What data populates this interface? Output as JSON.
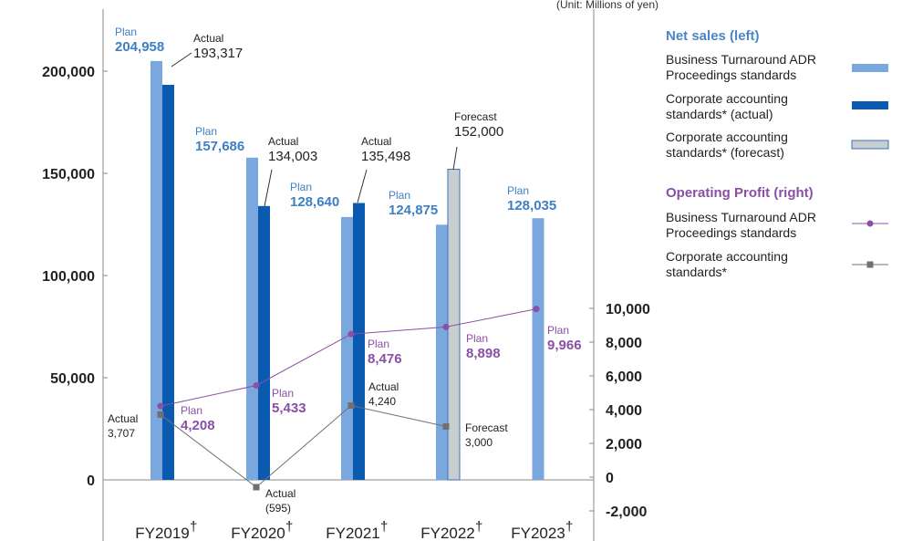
{
  "unit_note": "(Unit: Millions of yen)",
  "chart_data": {
    "type": "bar",
    "categories": [
      "FY2019",
      "FY2020",
      "FY2021",
      "FY2022",
      "FY2023"
    ],
    "category_mark": "†",
    "left_axis": {
      "ylim": [
        -20000,
        220000
      ],
      "ticks": [
        0,
        50000,
        100000,
        150000,
        200000
      ],
      "tick_labels": [
        "0",
        "50,000",
        "100,000",
        "150,000",
        "200,000"
      ]
    },
    "right_axis": {
      "ylim": [
        -2000,
        10000
      ],
      "ticks": [
        -2000,
        0,
        2000,
        4000,
        6000,
        8000,
        10000
      ],
      "tick_labels": [
        "-2,000",
        "0",
        "2,000",
        "4,000",
        "6,000",
        "8,000",
        "10,000"
      ]
    },
    "series": [
      {
        "name": "Business Turnaround ADR Proceedings standards",
        "kind": "bar",
        "axis": "left",
        "color": "#7aa7dd",
        "values": [
          204958,
          157686,
          128640,
          124875,
          128035
        ],
        "labels": [
          {
            "prefix": "Plan",
            "value": "204,958"
          },
          {
            "prefix": "Plan",
            "value": "157,686"
          },
          {
            "prefix": "Plan",
            "value": "128,640"
          },
          {
            "prefix": "Plan",
            "value": "124,875"
          },
          {
            "prefix": "Plan",
            "value": "128,035"
          }
        ]
      },
      {
        "name": "Corporate accounting standards* (actual)",
        "kind": "bar",
        "axis": "left",
        "color": "#0a5bb0",
        "values": [
          193317,
          134003,
          135498,
          null,
          null
        ],
        "labels": [
          {
            "prefix": "Actual",
            "value": "193,317"
          },
          {
            "prefix": "Actual",
            "value": "134,003"
          },
          {
            "prefix": "Actual",
            "value": "135,498"
          },
          null,
          null
        ]
      },
      {
        "name": "Corporate accounting standards* (forecast)",
        "kind": "bar",
        "axis": "left",
        "color": "#c8cdd0",
        "border": "#3a73b8",
        "values": [
          null,
          null,
          null,
          152000,
          null
        ],
        "labels": [
          null,
          null,
          null,
          {
            "prefix": "Forecast",
            "value": "152,000"
          },
          null
        ]
      },
      {
        "name": "Business Turnaround ADR Proceedings standards",
        "kind": "line",
        "axis": "right",
        "color": "#8a4fa6",
        "marker": "circle",
        "values": [
          4208,
          5433,
          8476,
          8898,
          9966
        ],
        "labels": [
          {
            "prefix": "Plan",
            "value": "4,208"
          },
          {
            "prefix": "Plan",
            "value": "5,433"
          },
          {
            "prefix": "Plan",
            "value": "8,476"
          },
          {
            "prefix": "Plan",
            "value": "8,898"
          },
          {
            "prefix": "Plan",
            "value": "9,966"
          }
        ]
      },
      {
        "name": "Corporate accounting standards*",
        "kind": "line",
        "axis": "right",
        "color": "#707070",
        "marker": "square",
        "values": [
          3707,
          -595,
          4240,
          3000,
          null
        ],
        "labels": [
          {
            "prefix": "Actual",
            "value": "3,707"
          },
          {
            "prefix": "Actual",
            "value": "(595)"
          },
          {
            "prefix": "Actual",
            "value": "4,240"
          },
          {
            "prefix": "Forecast",
            "value": "3,000"
          },
          null
        ]
      }
    ],
    "legend": {
      "placement": "right",
      "groups": [
        {
          "title": "Net sales (left)",
          "title_color": "#4a86c5",
          "series_index": [
            0,
            1,
            2
          ]
        },
        {
          "title": "Operating Profit (right)",
          "title_color": "#8a4fa6",
          "series_index": [
            3,
            4
          ]
        }
      ],
      "entries": [
        [
          "Business Turnaround ADR",
          "Proceedings standards"
        ],
        [
          "Corporate accounting",
          "standards* (actual)"
        ],
        [
          "Corporate accounting",
          "standards* (forecast)"
        ],
        [
          "Business Turnaround ADR",
          "Proceedings standards"
        ],
        [
          "Corporate accounting",
          "standards*"
        ]
      ]
    },
    "colors": {
      "plan_label": "#3f7fc4",
      "op_plan_label": "#8a4fa6",
      "text": "#222222",
      "axis": "#888888"
    }
  }
}
